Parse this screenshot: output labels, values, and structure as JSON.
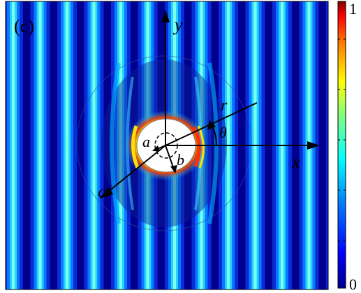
{
  "panel_label": "(c)",
  "labels": {
    "y": "y",
    "x": "x",
    "r": "r",
    "theta": "θ",
    "a": "a",
    "b": "b",
    "c": "c"
  },
  "colorbar": {
    "max_label": "1",
    "min_label": "0",
    "colors": [
      "#00008f",
      "#0000ff",
      "#0080ff",
      "#00ffff",
      "#80ff80",
      "#ffff00",
      "#ff8000",
      "#ff0000",
      "#800000"
    ]
  },
  "field_colors": {
    "background": "#1a3fbf",
    "crest": "#00c8ff",
    "trough": "#00008f",
    "hot": "#ff3000",
    "warm": "#ffe000",
    "scatterer": "#ffffff",
    "axes": "#000000"
  }
}
